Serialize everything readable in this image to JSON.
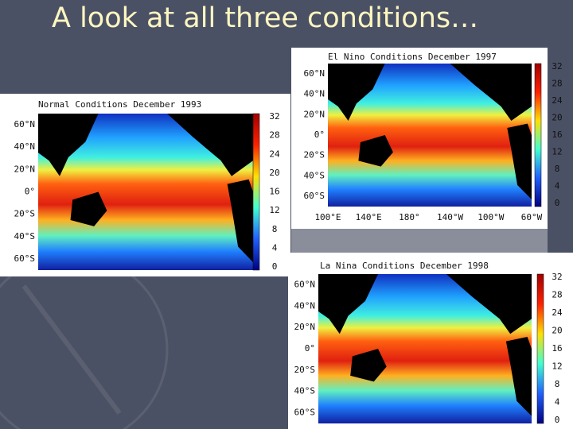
{
  "header": {
    "title": "A look at all three conditions…"
  },
  "panels": [
    {
      "title": "Normal Conditions December 1993",
      "lat_labels": [
        "60°N",
        "40°N",
        "20°N",
        "0°",
        "20°S",
        "40°S",
        "60°S"
      ],
      "scale_labels": [
        "32",
        "28",
        "24",
        "20",
        "16",
        "12",
        "8",
        "4",
        "0"
      ]
    },
    {
      "title": "El Nino Conditions December 1997",
      "lat_labels": [
        "60°N",
        "40°N",
        "20°N",
        "0°",
        "20°S",
        "40°S",
        "60°S"
      ],
      "lon_labels": [
        "100°E",
        "140°E",
        "180°",
        "140°W",
        "100°W",
        "60°W"
      ],
      "scale_labels": [
        "32",
        "28",
        "24",
        "20",
        "16",
        "12",
        "8",
        "4",
        "0"
      ]
    },
    {
      "title": "La Nina Conditions December 1998",
      "lat_labels": [
        "60°N",
        "40°N",
        "20°N",
        "0°",
        "20°S",
        "40°S",
        "60°S"
      ],
      "scale_labels": [
        "32",
        "28",
        "24",
        "20",
        "16",
        "12",
        "8",
        "4",
        "0"
      ]
    }
  ]
}
